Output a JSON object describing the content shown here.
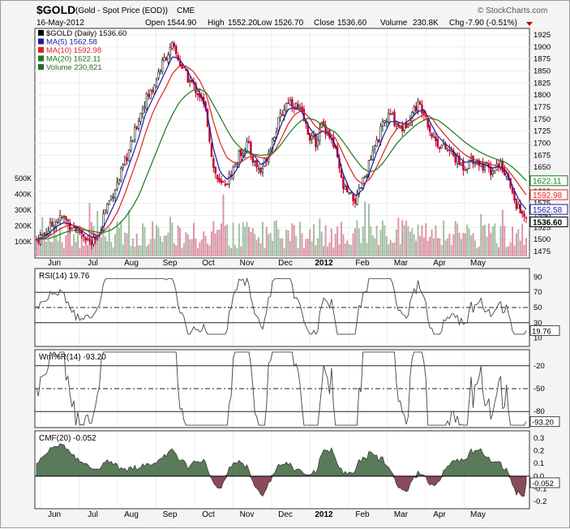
{
  "header": {
    "symbol": "$GOLD",
    "description": "(Gold - Spot Price (EOD))",
    "exchange": "CME",
    "date": "16-May-2012",
    "open_label": "Open",
    "open": "1544.90",
    "high_label": "High",
    "high": "1552.20",
    "low_label": "Low",
    "low": "1526.70",
    "close_label": "Close",
    "close": "1536.60",
    "volume_label": "Volume",
    "volume": "230.8K",
    "chg_label": "Chg",
    "chg": "-7.90 (-0.51%)",
    "brand": "© StockCharts.com"
  },
  "legend": [
    {
      "label": "$GOLD (Daily) 1536.60",
      "color": "#000000"
    },
    {
      "label": "MA(5) 1562.58",
      "color": "#1a1aa0"
    },
    {
      "label": "MA(10) 1592.98",
      "color": "#e02020"
    },
    {
      "label": "MA(20) 1622.11",
      "color": "#1a7a1a"
    },
    {
      "label": "Volume 230,821",
      "color": "#2a6a2a"
    }
  ],
  "colors": {
    "up": "#1a1a1a",
    "down": "#c2002a",
    "ma5": "#1a1aa0",
    "ma10": "#e02020",
    "ma20": "#1a7a1a",
    "vol_up": "#9ab89a",
    "vol_down": "#d98aa0",
    "osc_fill_up": "#5a7a5a",
    "osc_fill_down": "#8a4a5a"
  },
  "x_labels": [
    "Jun",
    "Jul",
    "Aug",
    "Sep",
    "Oct",
    "Nov",
    "Dec",
    "2012",
    "Feb",
    "Mar",
    "Apr",
    "May"
  ],
  "price_panel": {
    "ylim": [
      1465,
      1935
    ],
    "ticks": [
      1475,
      1500,
      1525,
      1550,
      1575,
      1600,
      1625,
      1650,
      1675,
      1700,
      1725,
      1750,
      1775,
      1800,
      1825,
      1850,
      1875,
      1900,
      1925
    ],
    "vol_ticks": [
      "100K",
      "200K",
      "300K",
      "400K",
      "500K"
    ],
    "tags": [
      {
        "label": "1622.11",
        "value": 1622.11,
        "color": "#1a7a1a"
      },
      {
        "label": "1592.98",
        "value": 1592.98,
        "color": "#e02020"
      },
      {
        "label": "1562.58",
        "value": 1562.58,
        "color": "#1a1aa0"
      },
      {
        "label": "1536.60",
        "value": 1536.6,
        "color": "#000000"
      }
    ]
  },
  "rsi_panel": {
    "title": "RSI(14) 19.76",
    "ticks": [
      "10",
      "30",
      "50",
      "70",
      "90"
    ],
    "ylim": [
      0,
      100
    ],
    "value_tag": "19.76",
    "lines": [
      30,
      50,
      70
    ]
  },
  "wr_panel": {
    "title": "Wm%R(14) -93.20",
    "ticks": [
      "-20",
      "-50",
      "-80"
    ],
    "ylim": [
      -100,
      0
    ],
    "value_tag": "-93.20",
    "lines": [
      -20,
      -50,
      -80
    ]
  },
  "cmf_panel": {
    "title": "CMF(20) -0.052",
    "ticks": [
      "0.3",
      "0.2",
      "0.1",
      "0.0",
      "-0.1",
      "-0.2"
    ],
    "ylim": [
      -0.25,
      0.35
    ],
    "value_tag": "-0.052"
  },
  "chart_data": {
    "type": "line",
    "title": "$GOLD (Daily) 1536.60",
    "xlabel": "",
    "ylabel": "",
    "ylim": [
      1465,
      1935
    ],
    "x_anchor_months": [
      "Jun",
      "Jul",
      "Aug",
      "Sep",
      "Oct",
      "Nov",
      "Dec",
      "2012",
      "Feb",
      "Mar",
      "Apr",
      "May"
    ],
    "series": [
      {
        "name": "$GOLD (Daily) 1536.60",
        "values": [
          1500,
          1510,
          1525,
          1540,
          1545,
          1530,
          1520,
          1510,
          1490,
          1500,
          1560,
          1590,
          1620,
          1660,
          1700,
          1750,
          1790,
          1810,
          1850,
          1880,
          1900,
          1870,
          1840,
          1820,
          1800,
          1760,
          1650,
          1610,
          1620,
          1650,
          1680,
          1700,
          1660,
          1640,
          1680,
          1720,
          1760,
          1790,
          1780,
          1760,
          1720,
          1700,
          1740,
          1720,
          1680,
          1610,
          1590,
          1580,
          1620,
          1660,
          1700,
          1740,
          1760,
          1740,
          1730,
          1760,
          1780,
          1770,
          1720,
          1700,
          1690,
          1680,
          1660,
          1650,
          1670,
          1660,
          1650,
          1640,
          1660,
          1640,
          1590,
          1560,
          1536.6
        ]
      },
      {
        "name": "MA(5) 1562.58",
        "values": [
          1500,
          1505,
          1515,
          1528,
          1535,
          1532,
          1525,
          1515,
          1505,
          1505,
          1530,
          1560,
          1590,
          1630,
          1670,
          1710,
          1760,
          1790,
          1820,
          1850,
          1880,
          1875,
          1855,
          1830,
          1805,
          1770,
          1690,
          1640,
          1625,
          1635,
          1660,
          1685,
          1675,
          1655,
          1665,
          1700,
          1740,
          1770,
          1775,
          1765,
          1735,
          1715,
          1725,
          1720,
          1695,
          1640,
          1605,
          1590,
          1605,
          1640,
          1680,
          1715,
          1745,
          1745,
          1740,
          1750,
          1765,
          1770,
          1740,
          1715,
          1700,
          1688,
          1672,
          1660,
          1663,
          1660,
          1655,
          1648,
          1652,
          1645,
          1610,
          1580,
          1562.58
        ]
      },
      {
        "name": "MA(10) 1592.98",
        "values": [
          1500,
          1502,
          1508,
          1518,
          1526,
          1530,
          1528,
          1522,
          1514,
          1508,
          1518,
          1535,
          1560,
          1595,
          1635,
          1675,
          1720,
          1760,
          1790,
          1815,
          1845,
          1860,
          1860,
          1850,
          1830,
          1800,
          1745,
          1700,
          1670,
          1660,
          1660,
          1670,
          1675,
          1670,
          1668,
          1683,
          1710,
          1740,
          1760,
          1768,
          1755,
          1735,
          1725,
          1722,
          1710,
          1680,
          1650,
          1625,
          1615,
          1625,
          1650,
          1680,
          1710,
          1730,
          1740,
          1742,
          1752,
          1760,
          1755,
          1735,
          1718,
          1702,
          1688,
          1676,
          1668,
          1663,
          1660,
          1655,
          1652,
          1650,
          1632,
          1612,
          1592.98
        ]
      },
      {
        "name": "MA(20) 1622.11",
        "values": [
          1500,
          1501,
          1503,
          1508,
          1514,
          1518,
          1520,
          1520,
          1518,
          1515,
          1515,
          1520,
          1530,
          1545,
          1565,
          1590,
          1625,
          1660,
          1695,
          1730,
          1760,
          1785,
          1800,
          1810,
          1812,
          1805,
          1780,
          1755,
          1728,
          1705,
          1690,
          1680,
          1677,
          1675,
          1676,
          1682,
          1698,
          1718,
          1735,
          1748,
          1752,
          1748,
          1738,
          1730,
          1722,
          1705,
          1685,
          1665,
          1648,
          1640,
          1645,
          1660,
          1680,
          1700,
          1715,
          1728,
          1740,
          1748,
          1752,
          1748,
          1738,
          1726,
          1714,
          1702,
          1692,
          1683,
          1676,
          1670,
          1665,
          1660,
          1650,
          1637,
          1622.11
        ]
      }
    ]
  }
}
